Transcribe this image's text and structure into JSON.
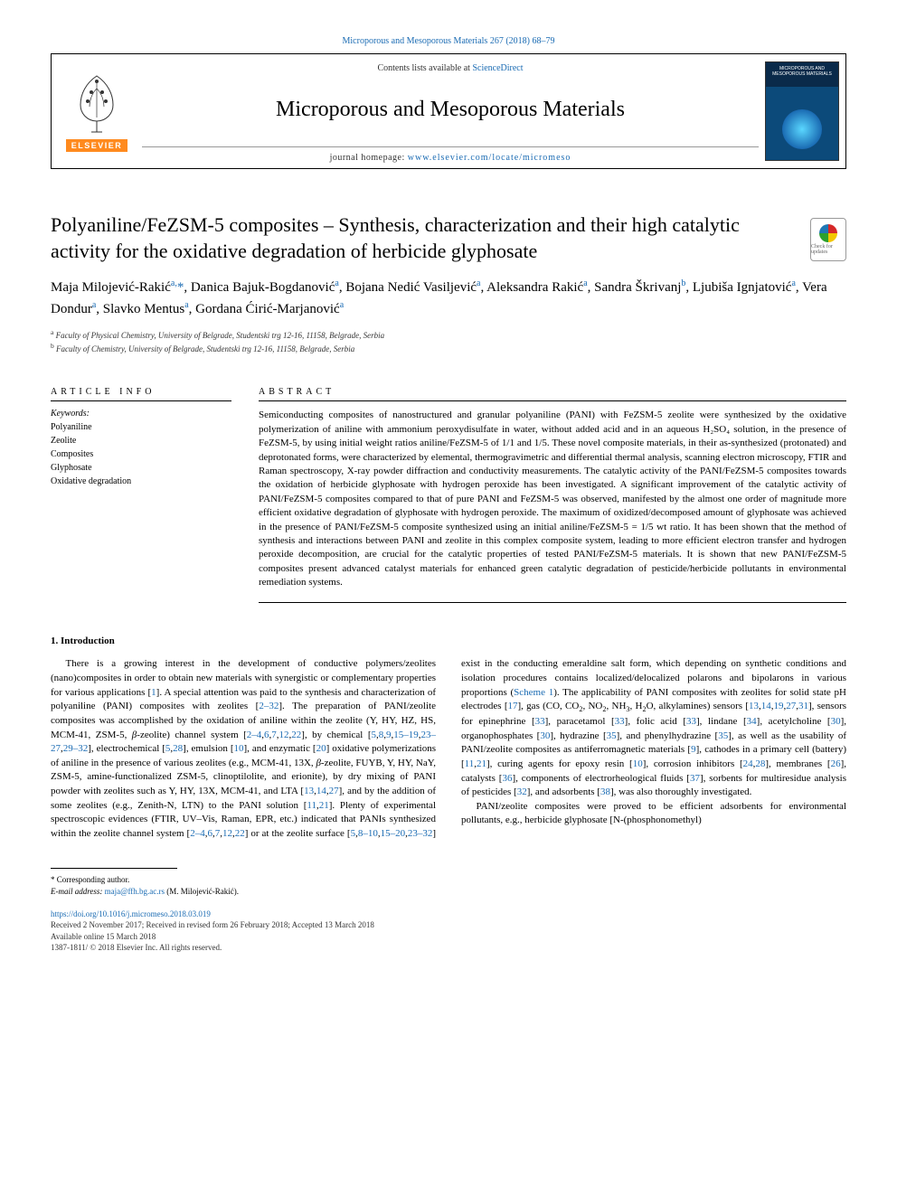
{
  "header": {
    "top_citation": "Microporous and Mesoporous Materials 267 (2018) 68–79",
    "contents_prefix": "Contents lists available at ",
    "contents_link": "ScienceDirect",
    "journal_title": "Microporous and Mesoporous Materials",
    "homepage_prefix": "journal homepage: ",
    "homepage_url": "www.elsevier.com/locate/micromeso",
    "elsevier_label": "ELSEVIER",
    "cover_label": "MICROPOROUS AND MESOPOROUS MATERIALS"
  },
  "article": {
    "title": "Polyaniline/FeZSM-5 composites – Synthesis, characterization and their high catalytic activity for the oxidative degradation of herbicide glyphosate",
    "crossmark_label": "Check for updates",
    "authors_html": "Maja Milojević-Rakić<sup>a,</sup><span class='star'>*</span>, Danica Bajuk-Bogdanović<sup>a</sup>, Bojana Nedić Vasiljević<sup>a</sup>, Aleksandra Rakić<sup>a</sup>, Sandra Škrivanj<sup>b</sup>, Ljubiša Ignjatović<sup>a</sup>, Vera Dondur<sup>a</sup>, Slavko Mentus<sup>a</sup>, Gordana Ćirić-Marjanović<sup>a</sup>",
    "affiliations": [
      {
        "sup": "a",
        "text": "Faculty of Physical Chemistry, University of Belgrade, Studentski trg 12-16, 11158, Belgrade, Serbia"
      },
      {
        "sup": "b",
        "text": "Faculty of Chemistry, University of Belgrade, Studentski trg 12-16, 11158, Belgrade, Serbia"
      }
    ]
  },
  "info": {
    "heading": "ARTICLE INFO",
    "keywords_label": "Keywords:",
    "keywords": [
      "Polyaniline",
      "Zeolite",
      "Composites",
      "Glyphosate",
      "Oxidative degradation"
    ]
  },
  "abstract": {
    "heading": "ABSTRACT",
    "text": "Semiconducting composites of nanostructured and granular polyaniline (PANI) with FeZSM-5 zeolite were synthesized by the oxidative polymerization of aniline with ammonium peroxydisulfate in water, without added acid and in an aqueous H₂SO₄ solution, in the presence of FeZSM-5, by using initial weight ratios aniline/FeZSM-5 of 1/1 and 1/5. These novel composite materials, in their as-synthesized (protonated) and deprotonated forms, were characterized by elemental, thermogravimetric and differential thermal analysis, scanning electron microscopy, FTIR and Raman spectroscopy, X-ray powder diffraction and conductivity measurements. The catalytic activity of the PANI/FeZSM-5 composites towards the oxidation of herbicide glyphosate with hydrogen peroxide has been investigated. A significant improvement of the catalytic activity of PANI/FeZSM-5 composites compared to that of pure PANI and FeZSM-5 was observed, manifested by the almost one order of magnitude more efficient oxidative degradation of glyphosate with hydrogen peroxide. The maximum of oxidized/decomposed amount of glyphosate was achieved in the presence of PANI/FeZSM-5 composite synthesized using an initial aniline/FeZSM-5 = 1/5 wt ratio. It has been shown that the method of synthesis and interactions between PANI and zeolite in this complex composite system, leading to more efficient electron transfer and hydrogen peroxide decomposition, are crucial for the catalytic properties of tested PANI/FeZSM-5 materials. It is shown that new PANI/FeZSM-5 composites present advanced catalyst materials for enhanced green catalytic degradation of pesticide/herbicide pollutants in environmental remediation systems."
  },
  "body": {
    "section_number": "1.",
    "section_title": "Introduction",
    "col_html": "<p>There is a growing interest in the development of conductive polymers/zeolites (nano)composites in order to obtain new materials with synergistic or complementary properties for various applications [<a class='ref'>1</a>]. A special attention was paid to the synthesis and characterization of polyaniline (PANI) composites with zeolites [<a class='ref'>2–32</a>]. The preparation of PANI/zeolite composites was accomplished by the oxidation of aniline within the zeolite (Y, HY, HZ, HS, MCM-41, ZSM-5, <i>β</i>-zeolite) channel system [<a class='ref'>2–4</a>,<a class='ref'>6</a>,<a class='ref'>7</a>,<a class='ref'>12</a>,<a class='ref'>22</a>], by chemical [<a class='ref'>5</a>,<a class='ref'>8</a>,<a class='ref'>9</a>,<a class='ref'>15–19</a>,<a class='ref'>23–27</a>,<a class='ref'>29–32</a>], electrochemical [<a class='ref'>5</a>,<a class='ref'>28</a>], emulsion [<a class='ref'>10</a>], and enzymatic [<a class='ref'>20</a>] oxidative polymerizations of aniline in the presence of various zeolites (e.g., MCM-41, 13X, <i>β</i>-zeolite, FUYB, Y, HY, NaY, ZSM-5, amine-functionalized ZSM-5, clinoptilolite, and erionite), by dry mixing of PANI powder with zeolites such as Y, HY, 13X, MCM-41, and LTA [<a class='ref'>13</a>,<a class='ref'>14</a>,<a class='ref'>27</a>], and by the addition of some zeolites (e.g., Zenith-N, LTN) to the PANI solution [<a class='ref'>11</a>,<a class='ref'>21</a>]. Plenty of experimental spectroscopic evidences (FTIR, UV–Vis, Raman, EPR, etc.) indicated that PANIs synthesized within the zeolite channel system [<a class='ref'>2–4</a>,<a class='ref'>6</a>,<a class='ref'>7</a>,<a class='ref'>12</a>,<a class='ref'>22</a>] or at the zeolite surface [<a class='ref'>5</a>,<a class='ref'>8–10</a>,<a class='ref'>15–20</a>,<a class='ref'>23–32</a>] exist in the conducting emeraldine salt form, which depending on synthetic conditions and isolation procedures contains localized/delocalized polarons and bipolarons in various proportions (<a class='ref'>Scheme 1</a>). The applicability of PANI composites with zeolites for solid state pH electrodes [<a class='ref'>17</a>], gas (CO, CO<sub>2</sub>, NO<sub>2</sub>, NH<sub>3</sub>, H<sub>2</sub>O, alkylamines) sensors [<a class='ref'>13</a>,<a class='ref'>14</a>,<a class='ref'>19</a>,<a class='ref'>27</a>,<a class='ref'>31</a>], sensors for epinephrine [<a class='ref'>33</a>], paracetamol [<a class='ref'>33</a>], folic acid [<a class='ref'>33</a>], lindane [<a class='ref'>34</a>], acetylcholine [<a class='ref'>30</a>], organophosphates [<a class='ref'>30</a>], hydrazine [<a class='ref'>35</a>], and phenylhydrazine [<a class='ref'>35</a>], as well as the usability of PANI/zeolite composites as antiferromagnetic materials [<a class='ref'>9</a>], cathodes in a primary cell (battery) [<a class='ref'>11</a>,<a class='ref'>21</a>], curing agents for epoxy resin [<a class='ref'>10</a>], corrosion inhibitors [<a class='ref'>24</a>,<a class='ref'>28</a>], membranes [<a class='ref'>26</a>], catalysts [<a class='ref'>36</a>], components of electrorheological fluids [<a class='ref'>37</a>], sorbents for multiresidue analysis of pesticides [<a class='ref'>32</a>], and adsorbents [<a class='ref'>38</a>], was also thoroughly investigated.</p><p>PANI/zeolite composites were proved to be efficient adsorbents for environmental pollutants, e.g., herbicide glyphosate [N-(phosphonomethyl)</p>"
  },
  "footer": {
    "corresponding_label": "* Corresponding author.",
    "email_label": "E-mail address:",
    "email": "maja@ffh.bg.ac.rs",
    "email_author": "(M. Milojević-Rakić).",
    "doi": "https://doi.org/10.1016/j.micromeso.2018.03.019",
    "received": "Received 2 November 2017; Received in revised form 26 February 2018; Accepted 13 March 2018",
    "available": "Available online 15 March 2018",
    "copyright": "1387-1811/ © 2018 Elsevier Inc. All rights reserved."
  },
  "colors": {
    "link": "#1a6bb3",
    "elsevier_orange": "#ff8a1e",
    "text": "#000000",
    "border": "#000000"
  }
}
